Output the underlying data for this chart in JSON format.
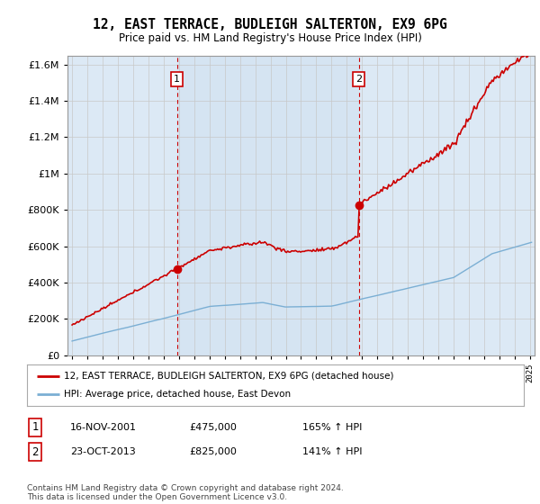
{
  "title": "12, EAST TERRACE, BUDLEIGH SALTERTON, EX9 6PG",
  "subtitle": "Price paid vs. HM Land Registry's House Price Index (HPI)",
  "legend_line1": "12, EAST TERRACE, BUDLEIGH SALTERTON, EX9 6PG (detached house)",
  "legend_line2": "HPI: Average price, detached house, East Devon",
  "annotation1_date": "16-NOV-2001",
  "annotation1_price": 475000,
  "annotation1_hpi": "165% ↑ HPI",
  "annotation2_date": "23-OCT-2013",
  "annotation2_price": 825000,
  "annotation2_hpi": "141% ↑ HPI",
  "footer": "Contains HM Land Registry data © Crown copyright and database right 2024.\nThis data is licensed under the Open Government Licence v3.0.",
  "red_color": "#cc0000",
  "blue_color": "#7bafd4",
  "bg_color": "#dce9f5",
  "plot_bg": "#ffffff",
  "grid_color": "#c8c8c8",
  "vline_color": "#cc0000",
  "ylim": [
    0,
    1650000
  ],
  "yticks": [
    0,
    200000,
    400000,
    600000,
    800000,
    1000000,
    1200000,
    1400000,
    1600000
  ],
  "xlim_start": 1994.7,
  "xlim_end": 2025.3,
  "sale1_year_float": 2001.87,
  "sale1_price": 475000,
  "sale2_year_float": 2013.79,
  "sale2_price": 825000
}
